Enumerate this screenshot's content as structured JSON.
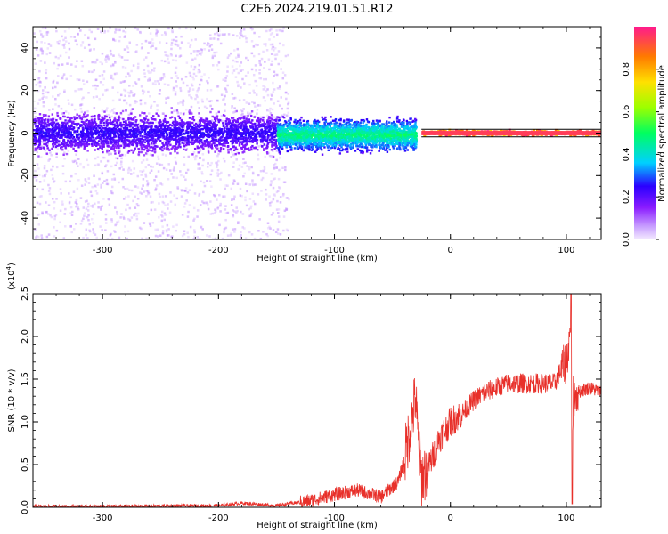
{
  "figure_title": "C2E6.2024.219.01.51.R12",
  "colorbar": {
    "label": "Normalized spectral amplitude",
    "ticks": [
      "0.0",
      "0.2",
      "0.4",
      "0.6",
      "0.8"
    ],
    "tick_values": [
      0.0,
      0.2,
      0.4,
      0.6,
      0.8
    ],
    "range": [
      0,
      1
    ]
  },
  "chart_data": [
    {
      "type": "heatmap",
      "title": "",
      "xlabel": "Height of straight line (km)",
      "ylabel": "Frequency (Hz)",
      "xlim": [
        -360,
        130
      ],
      "ylim": [
        -50,
        50
      ],
      "x_tick_values": [
        -300,
        -200,
        -100,
        0,
        100
      ],
      "x_tick_labels": [
        "-300",
        "-200",
        "-100",
        "0",
        "100"
      ],
      "y_tick_values": [
        -40,
        -20,
        0,
        20,
        40
      ],
      "y_tick_labels": [
        "-40",
        "-20",
        "0",
        "20",
        "40"
      ],
      "grid": false,
      "description_of_values": {
        "bands": [
          {
            "x_range": [
              -360,
              -150
            ],
            "freq_center": 0,
            "freq_halfwidth": 8,
            "amplitude": 0.18
          },
          {
            "x_range": [
              -150,
              -30
            ],
            "freq_center": -1,
            "freq_halfwidth": 6,
            "amplitude": 0.35
          },
          {
            "x_range": [
              -25,
              130
            ],
            "freq_center": 0,
            "freq_halfwidth": 1,
            "amplitude": 0.95
          }
        ],
        "sparse_noise_region": {
          "x_range": [
            -360,
            -140
          ],
          "freq_range": [
            -50,
            50
          ],
          "amplitude": 0.05
        }
      }
    },
    {
      "type": "line",
      "title": "",
      "xlabel": "Height of straight line (km)",
      "ylabel": "SNR (10 * v/v)",
      "y_scale_label": "(x10",
      "y_scale_exp": "4",
      "y_scale_close": ")",
      "xlim": [
        -360,
        130
      ],
      "ylim": [
        0,
        2.5
      ],
      "x_tick_values": [
        -300,
        -200,
        -100,
        0,
        100
      ],
      "x_tick_labels": [
        "-300",
        "-200",
        "-100",
        "0",
        "100"
      ],
      "y_tick_values": [
        0.0,
        0.5,
        1.0,
        1.5,
        2.0,
        2.5
      ],
      "y_tick_labels": [
        "0.0",
        "0.5",
        "1.0",
        "1.5",
        "2.0",
        "2.5"
      ],
      "grid": false,
      "series": [
        {
          "color": "#e8302a",
          "x": [
            -360,
            -300,
            -200,
            -180,
            -150,
            -120,
            -100,
            -80,
            -60,
            -45,
            -40,
            -35,
            -30,
            -28,
            -25,
            -20,
            -15,
            -10,
            -5,
            0,
            10,
            20,
            30,
            40,
            50,
            60,
            70,
            80,
            90,
            95,
            100,
            103,
            104,
            105,
            106,
            110,
            120,
            130
          ],
          "values": [
            0.01,
            0.01,
            0.02,
            0.05,
            0.02,
            0.08,
            0.15,
            0.2,
            0.12,
            0.3,
            0.55,
            0.9,
            1.3,
            0.8,
            0.35,
            0.45,
            0.6,
            0.8,
            0.9,
            1.0,
            1.1,
            1.25,
            1.35,
            1.4,
            1.45,
            1.45,
            1.45,
            1.45,
            1.45,
            1.6,
            1.7,
            2.0,
            2.5,
            0.05,
            1.3,
            1.35,
            1.4,
            1.35
          ]
        }
      ]
    }
  ]
}
